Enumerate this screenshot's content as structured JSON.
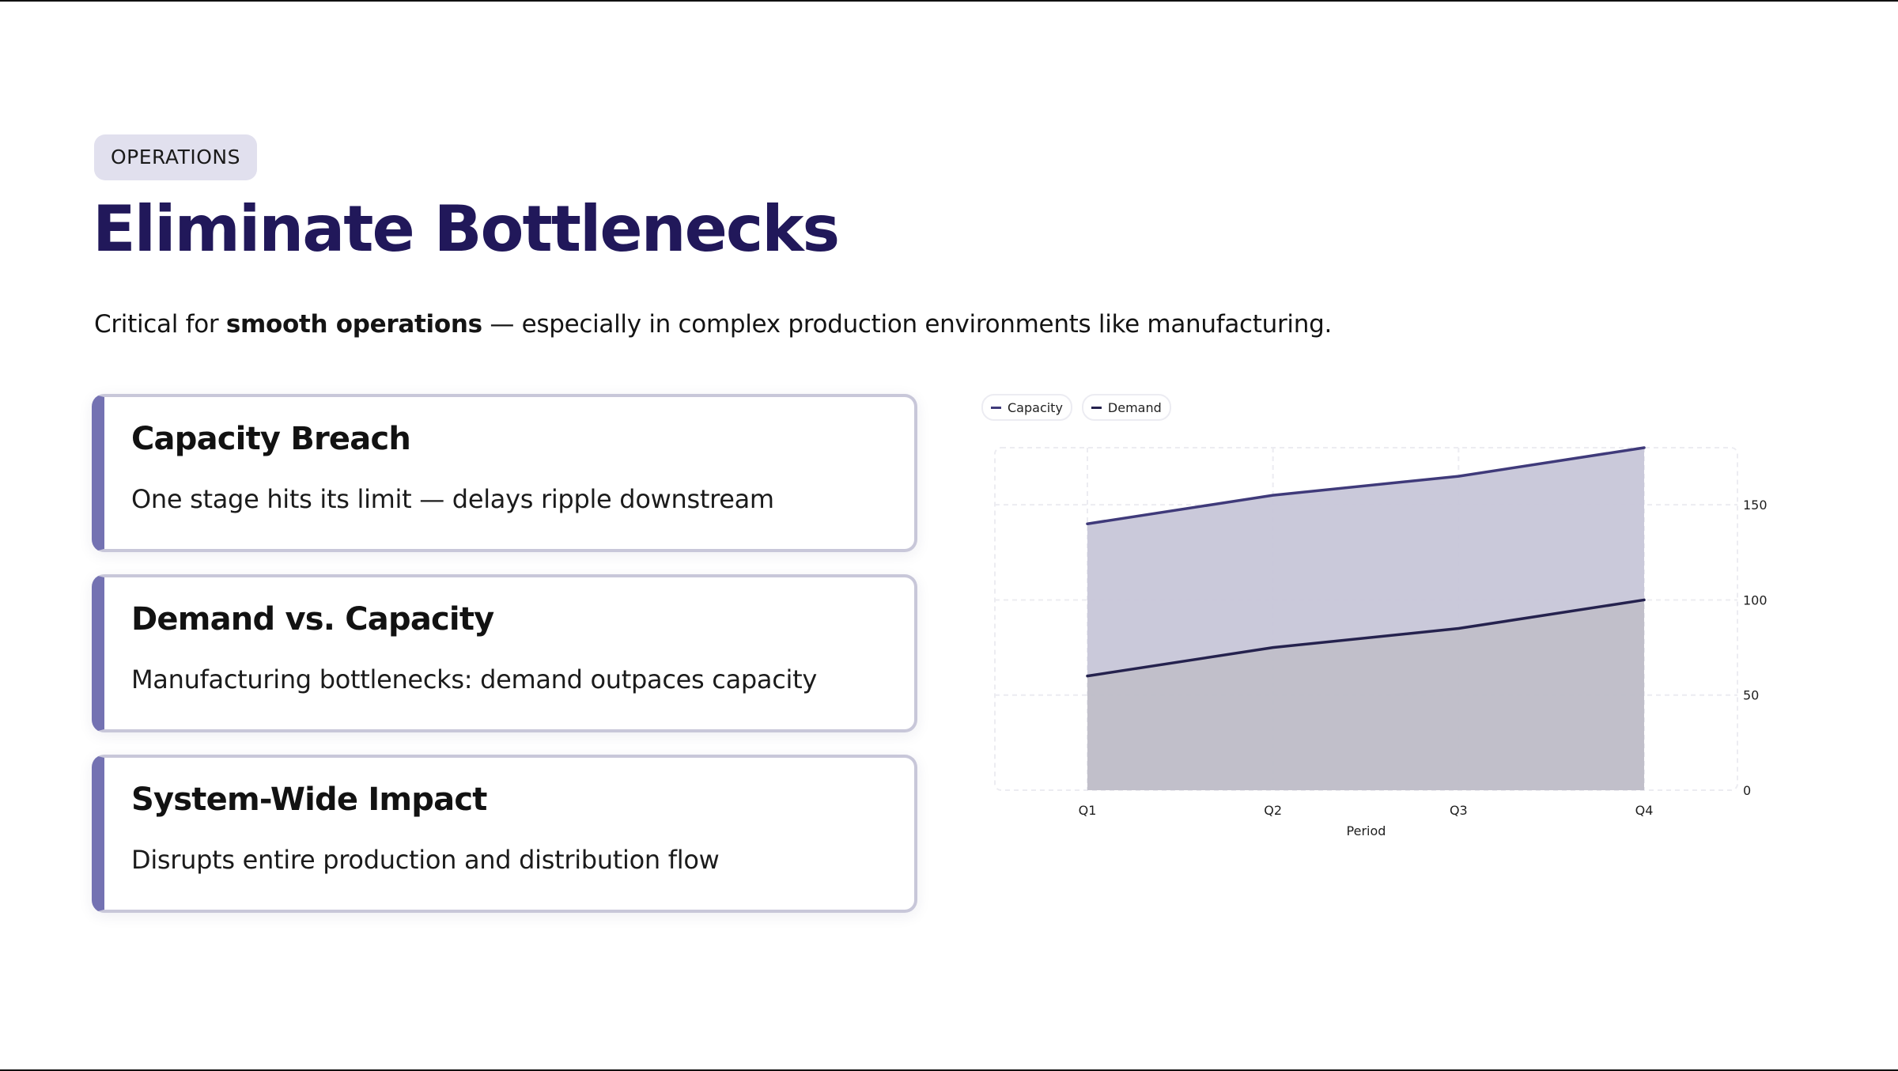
{
  "tag": "OPERATIONS",
  "title": "Eliminate Bottlenecks",
  "subtitle": {
    "prefix": "Critical for ",
    "emphasis": "smooth operations",
    "suffix": " — especially in complex production environments like manufacturing."
  },
  "cards": [
    {
      "title": "Capacity Breach",
      "description": "One stage hits its limit — delays ripple downstream"
    },
    {
      "title": "Demand vs. Capacity",
      "description": "Manufacturing bottlenecks: demand outpaces capacity"
    },
    {
      "title": "System-Wide Impact",
      "description": "Disrupts entire production and distribution flow"
    }
  ],
  "colors": {
    "accent": "#7472b2",
    "title": "#21185a",
    "tag_bg": "#e1e0ee",
    "capacity_line": "#3f3a7a",
    "capacity_fill": "#c7c6d8",
    "demand_line": "#25224e",
    "demand_fill": "#c0bfc9"
  },
  "chart_data": {
    "type": "area",
    "categories": [
      "Q1",
      "Q2",
      "Q3",
      "Q4"
    ],
    "series": [
      {
        "name": "Capacity",
        "values": [
          140,
          155,
          165,
          180
        ]
      },
      {
        "name": "Demand",
        "values": [
          60,
          75,
          85,
          100
        ]
      }
    ],
    "xlabel": "Period",
    "ylabel": "",
    "ylim": [
      0,
      180
    ],
    "yticks": [
      0,
      50,
      100,
      150
    ],
    "y_axis_side": "right",
    "grid": true,
    "legend": "top-left"
  }
}
